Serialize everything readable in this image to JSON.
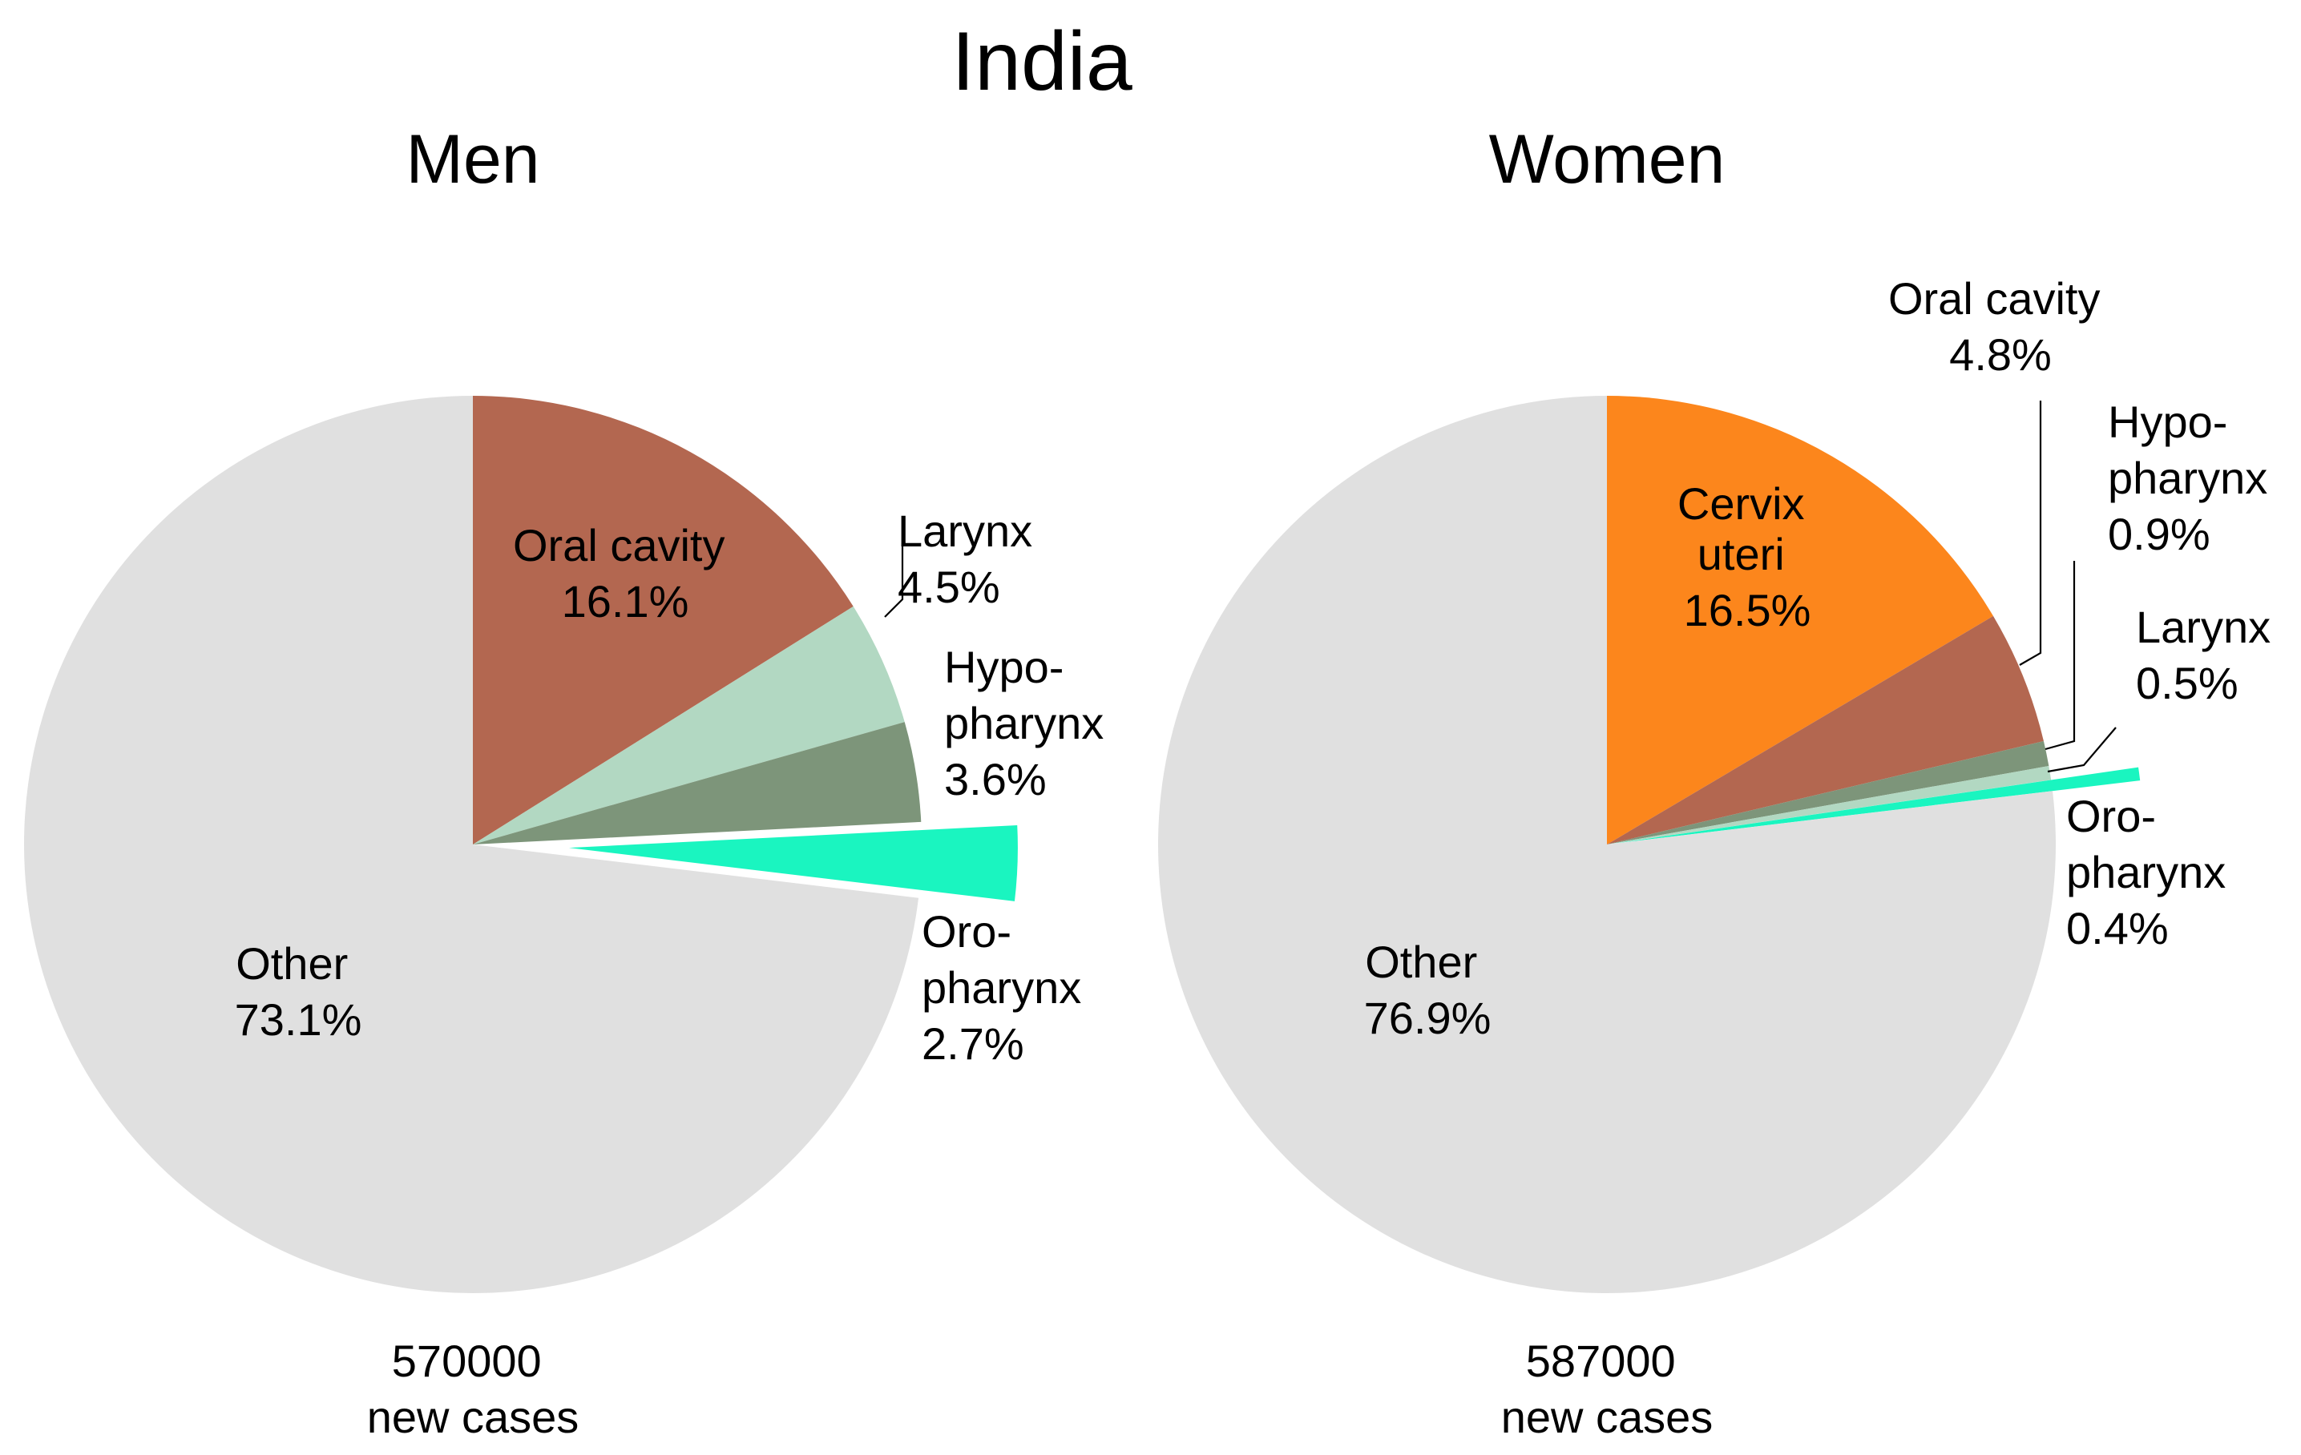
{
  "title": "India",
  "chart_data": [
    {
      "type": "pie",
      "title": "Men",
      "total": {
        "value": "570000",
        "unit": "new cases"
      },
      "slices": [
        {
          "name": "Oral cavity",
          "value": 16.1,
          "label": "16.1%",
          "color": "#b36750"
        },
        {
          "name": "Larynx",
          "value": 4.5,
          "label": "4.5%",
          "color": "#b2d8c2"
        },
        {
          "name": "Hypo-pharynx",
          "value": 3.6,
          "label": "3.6%",
          "color": "#7d957a"
        },
        {
          "name": "Oro-pharynx",
          "value": 2.7,
          "label": "2.7%",
          "color": "#1af5c0",
          "exploded": true
        },
        {
          "name": "Other",
          "value": 73.1,
          "label": "73.1%",
          "color": "#e0e0e0"
        }
      ]
    },
    {
      "type": "pie",
      "title": "Women",
      "total": {
        "value": "587000",
        "unit": "new cases"
      },
      "slices": [
        {
          "name": "Cervix uteri",
          "value": 16.5,
          "label": "16.5%",
          "color": "#fc861c"
        },
        {
          "name": "Oral cavity",
          "value": 4.8,
          "label": "4.8%",
          "color": "#b36750"
        },
        {
          "name": "Hypo-pharynx",
          "value": 0.9,
          "label": "0.9%",
          "color": "#7d957a"
        },
        {
          "name": "Larynx",
          "value": 0.5,
          "label": "0.5%",
          "color": "#b2d8c2"
        },
        {
          "name": "Oro-pharynx",
          "value": 0.4,
          "label": "0.4%",
          "color": "#1af5c0",
          "exploded": true
        },
        {
          "name": "Other",
          "value": 76.9,
          "label": "76.9%",
          "color": "#e0e0e0"
        }
      ]
    }
  ],
  "text": {
    "men": {
      "oral": [
        "Oral cavity",
        "16.1%"
      ],
      "larynx": [
        "Larynx",
        "4.5%"
      ],
      "hypo": [
        "Hypo-",
        "pharynx",
        "3.6%"
      ],
      "oro": [
        "Oro-",
        "pharynx",
        "2.7%"
      ],
      "other": [
        "Other",
        "73.1%"
      ],
      "total": [
        "570000",
        "new cases"
      ]
    },
    "women": {
      "cervix": [
        "Cervix",
        "uteri",
        "16.5%"
      ],
      "oral": [
        "Oral cavity",
        "4.8%"
      ],
      "hypo": [
        "Hypo-",
        "pharynx",
        "0.9%"
      ],
      "larynx": [
        "Larynx",
        "0.5%"
      ],
      "oro": [
        "Oro-",
        "pharynx",
        "0.4%"
      ],
      "other": [
        "Other",
        "76.9%"
      ],
      "total": [
        "587000",
        "new cases"
      ]
    }
  }
}
